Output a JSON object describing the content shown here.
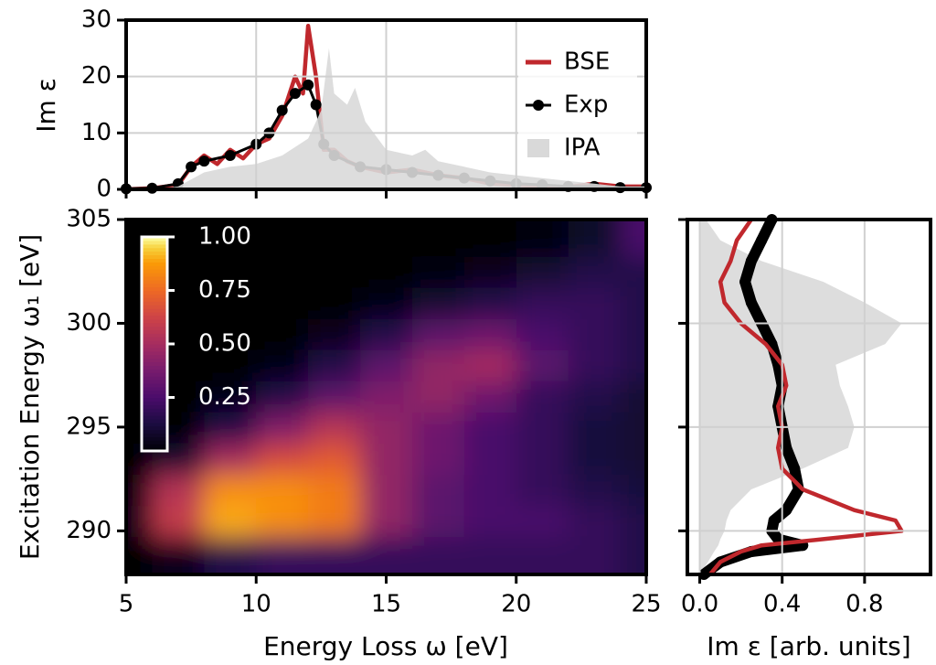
{
  "chart_data": [
    {
      "type": "line",
      "ylabel": "Im ε",
      "xlim": [
        5,
        25
      ],
      "ylim": [
        0,
        30
      ],
      "xticks": [
        5,
        10,
        15,
        20,
        25
      ],
      "yticks": [
        0,
        10,
        20,
        30
      ],
      "xticklabels": false,
      "grid": true,
      "legend": "upper right",
      "series": [
        {
          "name": "BSE",
          "color": "#c0282d",
          "style": "line",
          "x": [
            5,
            6,
            7,
            7.5,
            8,
            8.5,
            9,
            9.5,
            10,
            10.5,
            11,
            11.5,
            11.8,
            12,
            12.3,
            12.6,
            13,
            13.5,
            14,
            15,
            16,
            17,
            18,
            19,
            20,
            21,
            22,
            23,
            24,
            25
          ],
          "values": [
            0,
            0.2,
            0.8,
            4,
            6,
            4.5,
            7,
            5.5,
            8,
            9,
            13,
            20,
            17,
            29,
            20,
            7,
            7,
            5,
            4,
            3,
            3.5,
            2.5,
            2,
            1,
            0.8,
            0.5,
            0.4,
            1,
            0.5,
            0.5
          ]
        },
        {
          "name": "Exp",
          "color": "#000000",
          "style": "markers",
          "x": [
            5,
            6,
            7,
            7.5,
            8,
            9,
            10,
            10.5,
            11,
            11.5,
            12,
            12.3,
            12.6,
            13,
            14,
            15,
            16,
            17,
            18,
            19,
            20,
            21,
            22,
            23,
            24,
            25
          ],
          "values": [
            0.1,
            0.2,
            1,
            4,
            5,
            6,
            8,
            10,
            14,
            17,
            18.5,
            15,
            8,
            6,
            4,
            3.5,
            3,
            2.5,
            2,
            1.5,
            1,
            0.8,
            0.5,
            0.5,
            0.3,
            0.3
          ]
        },
        {
          "name": "IPA",
          "color": "#d9d9d9",
          "style": "area",
          "x": [
            5,
            6,
            7,
            8,
            9,
            10,
            11,
            12,
            12.5,
            12.8,
            13,
            13.5,
            13.8,
            14.2,
            15,
            16,
            16.5,
            17,
            18,
            19,
            20,
            21,
            22,
            23,
            24,
            25
          ],
          "values": [
            0,
            0,
            0.5,
            3,
            4,
            4.5,
            6,
            9,
            14,
            25,
            17,
            15,
            18,
            12,
            7,
            6,
            7,
            5,
            4,
            3,
            2.5,
            2,
            1.5,
            1,
            0.5,
            0.5
          ]
        }
      ]
    },
    {
      "type": "heatmap",
      "xlabel": "Energy Loss ω [eV]",
      "ylabel": "Excitation Energy ω₁ [eV]",
      "xlim": [
        5,
        25
      ],
      "ylim": [
        287.9,
        305
      ],
      "xticks": [
        5,
        10,
        15,
        20,
        25
      ],
      "yticks": [
        290,
        295,
        300,
        305
      ],
      "colormap": "inferno",
      "x": [
        5,
        7,
        9,
        11,
        13,
        15,
        17,
        19,
        21,
        23,
        25
      ],
      "y": [
        289,
        290.5,
        292,
        293.5,
        295,
        296.5,
        298,
        299.5,
        301,
        302.5,
        304
      ],
      "z": [
        [
          0,
          0.05,
          0.15,
          0.2,
          0.2,
          0.2,
          0.2,
          0.2,
          0.2,
          0.2,
          0.15
        ],
        [
          0.05,
          0.6,
          0.9,
          0.85,
          0.8,
          0.45,
          0.3,
          0.25,
          0.25,
          0.2,
          0.15
        ],
        [
          0.02,
          0.55,
          0.85,
          0.85,
          0.8,
          0.45,
          0.3,
          0.25,
          0.2,
          0.15,
          0.12
        ],
        [
          0,
          0.1,
          0.5,
          0.65,
          0.7,
          0.45,
          0.35,
          0.25,
          0.2,
          0.12,
          0.1
        ],
        [
          0,
          0,
          0.15,
          0.4,
          0.55,
          0.45,
          0.35,
          0.25,
          0.2,
          0.12,
          0.1
        ],
        [
          0,
          0,
          0.03,
          0.15,
          0.3,
          0.4,
          0.45,
          0.35,
          0.2,
          0.15,
          0.1
        ],
        [
          0,
          0,
          0,
          0.03,
          0.15,
          0.3,
          0.45,
          0.5,
          0.3,
          0.2,
          0.15
        ],
        [
          0,
          0,
          0,
          0,
          0.05,
          0.15,
          0.3,
          0.35,
          0.25,
          0.2,
          0.15
        ],
        [
          0,
          0,
          0,
          0,
          0,
          0.03,
          0.1,
          0.15,
          0.2,
          0.2,
          0.15
        ],
        [
          0,
          0,
          0,
          0,
          0,
          0,
          0.02,
          0.05,
          0.1,
          0.15,
          0.15
        ],
        [
          0,
          0,
          0,
          0,
          0,
          0,
          0,
          0,
          0.02,
          0.08,
          0.25
        ]
      ],
      "colorbar": {
        "clim": [
          0,
          1
        ],
        "ticks": [
          0.25,
          {
            "value": 0.5,
            "label": "0.50"
          },
          0.75,
          {
            "value": 1,
            "label": "1.00"
          }
        ]
      }
    },
    {
      "type": "line",
      "orientation": "horizontal",
      "xlabel": "Im ε [arb. units]",
      "xlim": [
        -0.06,
        1.12
      ],
      "ylim": [
        287.9,
        305
      ],
      "xticks": [
        {
          "value": 0,
          "label": "0.0"
        },
        0.4,
        0.8
      ],
      "yticks": [
        290,
        295,
        300,
        305
      ],
      "yticklabels": false,
      "grid": true,
      "series": [
        {
          "name": "IPA",
          "color": "#d9d9d9",
          "style": "area",
          "y": [
            287.9,
            288.5,
            289,
            289.3,
            289.6,
            290,
            290.5,
            291,
            292,
            293,
            294,
            295,
            296,
            297,
            298,
            299,
            300,
            301,
            302,
            303,
            304,
            305
          ],
          "values": [
            0,
            0.04,
            0.07,
            0.09,
            0.1,
            0.12,
            0.13,
            0.15,
            0.25,
            0.5,
            0.72,
            0.75,
            0.72,
            0.68,
            0.66,
            0.9,
            0.98,
            0.8,
            0.6,
            0.3,
            0.1,
            0.03
          ]
        },
        {
          "name": "Exp",
          "color": "#000000",
          "style": "markers",
          "y": [
            287.9,
            288.5,
            289,
            289.3,
            289.6,
            290,
            290.5,
            291,
            292,
            293,
            294,
            295,
            296,
            297,
            298,
            299,
            300,
            301,
            302,
            303,
            304,
            305
          ],
          "values": [
            0.02,
            0.1,
            0.25,
            0.5,
            0.38,
            0.35,
            0.36,
            0.42,
            0.48,
            0.46,
            0.42,
            0.4,
            0.38,
            0.4,
            0.38,
            0.35,
            0.3,
            0.25,
            0.22,
            0.25,
            0.3,
            0.35
          ]
        },
        {
          "name": "BSE",
          "color": "#c0282d",
          "style": "line",
          "y": [
            287.9,
            288.5,
            289,
            289.3,
            289.6,
            290,
            290.5,
            291,
            292,
            293,
            294,
            295,
            296,
            297,
            298,
            299,
            300,
            301,
            302,
            303,
            304,
            305
          ],
          "values": [
            0.05,
            0.1,
            0.2,
            0.3,
            0.6,
            0.98,
            0.95,
            0.75,
            0.5,
            0.4,
            0.38,
            0.4,
            0.38,
            0.42,
            0.4,
            0.32,
            0.2,
            0.12,
            0.1,
            0.15,
            0.18,
            0.25
          ]
        }
      ]
    }
  ]
}
